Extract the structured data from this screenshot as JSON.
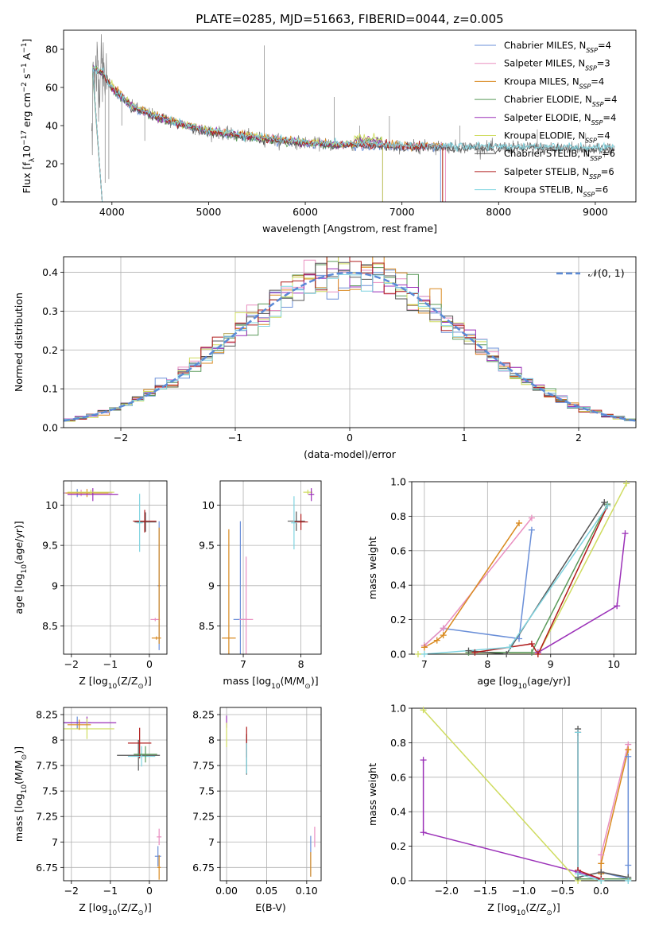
{
  "title": "PLATE=0285, MJD=51663, FIBERID=0044, z=0.005",
  "colors": [
    "#6a8fd8",
    "#e98fc0",
    "#d98a20",
    "#5a9a5a",
    "#9b30b8",
    "#cfdc60",
    "#555555",
    "#b01c1c",
    "#80d4e0"
  ],
  "legend_labels": [
    {
      "base": "Chabrier MILES, N",
      "sub": "SSP",
      "tail": "=4"
    },
    {
      "base": "Salpeter MILES, N",
      "sub": "SSP",
      "tail": "=3"
    },
    {
      "base": "Kroupa MILES, N",
      "sub": "SSP",
      "tail": "=4"
    },
    {
      "base": "Chabrier ELODIE, N",
      "sub": "SSP",
      "tail": "=4"
    },
    {
      "base": "Salpeter ELODIE, N",
      "sub": "SSP",
      "tail": "=4"
    },
    {
      "base": "Kroupa ELODIE, N",
      "sub": "SSP",
      "tail": "=4"
    },
    {
      "base": "Chabrier STELIB, N",
      "sub": "SSP",
      "tail": "=6"
    },
    {
      "base": "Salpeter STELIB, N",
      "sub": "SSP",
      "tail": "=6"
    },
    {
      "base": "Kroupa STELIB, N",
      "sub": "SSP",
      "tail": "=6"
    }
  ],
  "normal_legend": "𝒩(0, 1)",
  "chart_data": [
    {
      "id": "spectrum",
      "type": "line",
      "xlabel": "wavelength [Angstrom, rest frame]",
      "ylabel": {
        "pre": "Flux [f",
        "sub1": "λ",
        "mid": "10",
        "sup1": "−17",
        "mid2": " erg cm",
        "sup2": "−2",
        "mid3": " s",
        "sup3": "−1",
        "mid4": " A",
        "sup4": "−1",
        "end": "]"
      },
      "xlim": [
        3500,
        9420
      ],
      "ylim": [
        0,
        90
      ],
      "xticks": [
        4000,
        5000,
        6000,
        7000,
        8000,
        9000
      ],
      "yticks": [
        0,
        20,
        40,
        60,
        80
      ],
      "model_continuum": [
        [
          3800,
          70
        ],
        [
          3900,
          68
        ],
        [
          4000,
          60
        ],
        [
          4100,
          55
        ],
        [
          4200,
          50
        ],
        [
          4300,
          48
        ],
        [
          4500,
          44
        ],
        [
          4700,
          41
        ],
        [
          5000,
          37
        ],
        [
          5300,
          35
        ],
        [
          5600,
          33
        ],
        [
          6000,
          31
        ],
        [
          6300,
          30
        ],
        [
          6600,
          30
        ],
        [
          7000,
          29
        ],
        [
          7400,
          29
        ],
        [
          8000,
          28.5
        ],
        [
          8500,
          28.5
        ],
        [
          9000,
          28
        ],
        [
          9200,
          28
        ]
      ],
      "spikes": [
        [
          3930,
          10
        ],
        [
          3968,
          12
        ],
        [
          4102,
          40
        ],
        [
          4340,
          32
        ],
        [
          4861,
          35
        ],
        [
          5577,
          82
        ],
        [
          5890,
          30
        ],
        [
          6300,
          55
        ],
        [
          6563,
          40
        ],
        [
          6870,
          45
        ],
        [
          7600,
          40
        ],
        [
          8400,
          38
        ],
        [
          8900,
          36
        ]
      ]
    },
    {
      "id": "residuals",
      "type": "histogram",
      "xlabel": "(data-model)/error",
      "ylabel": "Normed distribution",
      "xlim": [
        -2.5,
        2.5
      ],
      "ylim": [
        0,
        0.44
      ],
      "xticks": [
        -2,
        -1,
        0,
        1,
        2
      ],
      "yticks": [
        0.0,
        0.1,
        0.2,
        0.3,
        0.4
      ],
      "bin_width": 0.1,
      "normal_curve": {
        "mu": 0,
        "sigma": 1
      }
    },
    {
      "id": "age-vs-Z",
      "type": "scatter",
      "xlabel": {
        "pre": "Z [log",
        "sub": "10",
        "mid": "(Z/Z",
        "sub2": "⊙",
        "end": ")]"
      },
      "ylabel": {
        "pre": "age  [log",
        "sub": "10",
        "end": "(age/yr)]"
      },
      "xlim": [
        -2.2,
        0.45
      ],
      "ylim": [
        8.15,
        10.3
      ],
      "xticks": [
        -2,
        -1,
        0
      ],
      "yticks": [
        8.5,
        9.0,
        9.5,
        10.0
      ],
      "points": [
        {
          "s": 0,
          "x": -1.85,
          "y": 10.15,
          "ex": 0.85,
          "ey": 0.05
        },
        {
          "s": 1,
          "x": -1.75,
          "y": 10.15,
          "ex": 0.8,
          "ey": 0.04
        },
        {
          "s": 2,
          "x": -1.6,
          "y": 10.15,
          "ex": 0.55,
          "ey": 0.05
        },
        {
          "s": 4,
          "x": -1.45,
          "y": 10.13,
          "ex": 0.65,
          "ey": 0.08
        },
        {
          "s": 5,
          "x": -1.5,
          "y": 10.16,
          "ex": 0.6,
          "ey": 0.03
        },
        {
          "s": 6,
          "x": -0.1,
          "y": 9.79,
          "ex": 0.28,
          "ey": 0.12
        },
        {
          "s": 7,
          "x": -0.12,
          "y": 9.8,
          "ex": 0.3,
          "ey": 0.14
        },
        {
          "s": 8,
          "x": -0.25,
          "y": 9.78,
          "ex": 0.08,
          "ey": 0.36
        },
        {
          "s": 0,
          "x": 0.25,
          "y": 9.0,
          "ex": 0.04,
          "ey": 0.8
        },
        {
          "s": 1,
          "x": 0.15,
          "y": 8.58,
          "ex": 0.12,
          "ey": 0.02
        },
        {
          "s": 2,
          "x": 0.18,
          "y": 8.35,
          "ex": 0.12,
          "ey": 0.02
        },
        {
          "s": 2,
          "x": 0.25,
          "y": 9.0,
          "ex": 0.02,
          "ey": 0.72
        }
      ]
    },
    {
      "id": "age-vs-mass",
      "type": "scatter",
      "xlabel": {
        "pre": "mass [log",
        "sub": "10",
        "mid": "(M/M",
        "sub2": "⊙",
        "end": ")]"
      },
      "ylabel": "",
      "xlim": [
        6.6,
        8.35
      ],
      "ylim": [
        8.15,
        10.3
      ],
      "xticks": [
        7,
        8
      ],
      "yticks": [
        8.5,
        9.0,
        9.5,
        10.0
      ],
      "points": [
        {
          "s": 0,
          "x": 6.95,
          "y": 8.58,
          "ex": 0.12,
          "ey": 1.22
        },
        {
          "s": 1,
          "x": 7.05,
          "y": 8.58,
          "ex": 0.12,
          "ey": 0.78
        },
        {
          "s": 2,
          "x": 6.75,
          "y": 8.35,
          "ex": 0.12,
          "ey": 1.35
        },
        {
          "s": 6,
          "x": 7.92,
          "y": 9.8,
          "ex": 0.15,
          "ey": 0.12
        },
        {
          "s": 7,
          "x": 8.0,
          "y": 9.79,
          "ex": 0.12,
          "ey": 0.1
        },
        {
          "s": 8,
          "x": 7.88,
          "y": 9.78,
          "ex": 0.05,
          "ey": 0.33
        },
        {
          "s": 5,
          "x": 8.12,
          "y": 10.16,
          "ex": 0.08,
          "ey": 0.03
        },
        {
          "s": 4,
          "x": 8.18,
          "y": 10.13,
          "ex": 0.05,
          "ey": 0.08
        }
      ]
    },
    {
      "id": "weight-vs-age",
      "type": "line",
      "xlabel": {
        "pre": "age  [log",
        "sub": "10",
        "end": "(age/yr)]"
      },
      "ylabel": "mass weight",
      "xlim": [
        6.8,
        10.35
      ],
      "ylim": [
        0,
        1.0
      ],
      "xticks": [
        7,
        8,
        9,
        10
      ],
      "yticks": [
        0.0,
        0.2,
        0.4,
        0.6,
        0.8,
        1.0
      ],
      "series": [
        {
          "s": 0,
          "points": [
            [
              7.0,
              0.05
            ],
            [
              7.3,
              0.15
            ],
            [
              8.5,
              0.09
            ],
            [
              8.7,
              0.72
            ]
          ]
        },
        {
          "s": 1,
          "points": [
            [
              7.0,
              0.05
            ],
            [
              7.3,
              0.15
            ],
            [
              8.7,
              0.79
            ]
          ]
        },
        {
          "s": 2,
          "points": [
            [
              7.0,
              0.04
            ],
            [
              7.2,
              0.08
            ],
            [
              7.3,
              0.11
            ],
            [
              8.5,
              0.76
            ]
          ]
        },
        {
          "s": 3,
          "points": [
            [
              7.7,
              0.01
            ],
            [
              8.7,
              0.01
            ],
            [
              9.9,
              0.87
            ]
          ]
        },
        {
          "s": 4,
          "points": [
            [
              8.8,
              0.01
            ],
            [
              10.05,
              0.28
            ],
            [
              10.18,
              0.7
            ]
          ]
        },
        {
          "s": 5,
          "points": [
            [
              6.9,
              0.0
            ],
            [
              8.8,
              0.0
            ],
            [
              10.2,
              0.99
            ]
          ]
        },
        {
          "s": 6,
          "points": [
            [
              7.7,
              0.02
            ],
            [
              8.3,
              0.0
            ],
            [
              9.85,
              0.88
            ]
          ]
        },
        {
          "s": 7,
          "points": [
            [
              7.8,
              0.01
            ],
            [
              8.7,
              0.06
            ],
            [
              8.8,
              0.0
            ],
            [
              9.9,
              0.86
            ]
          ]
        },
        {
          "s": 8,
          "points": [
            [
              7.0,
              0.0
            ],
            [
              8.35,
              0.04
            ],
            [
              9.9,
              0.86
            ]
          ]
        }
      ]
    },
    {
      "id": "mass-vs-Z",
      "type": "scatter",
      "xlabel": {
        "pre": "Z [log",
        "sub": "10",
        "mid": "(Z/Z",
        "sub2": "⊙",
        "end": ")]"
      },
      "ylabel": {
        "pre": "mass [log",
        "sub": "10",
        "mid": "(M/M",
        "sub2": "⊙",
        "end": ")]"
      },
      "xlim": [
        -2.2,
        0.45
      ],
      "ylim": [
        6.62,
        8.32
      ],
      "xticks": [
        -2,
        -1,
        0
      ],
      "yticks": [
        6.75,
        7.0,
        7.25,
        7.5,
        7.75,
        8.0,
        8.25
      ],
      "points": [
        {
          "s": 0,
          "x": -1.85,
          "y": 8.17,
          "ex": 0.35,
          "ey": 0.06
        },
        {
          "s": 4,
          "x": -1.6,
          "y": 8.17,
          "ex": 0.75,
          "ey": 0.06
        },
        {
          "s": 5,
          "x": -1.6,
          "y": 8.11,
          "ex": 0.7,
          "ey": 0.1
        },
        {
          "s": 2,
          "x": -1.8,
          "y": 8.15,
          "ex": 0.3,
          "ey": 0.05
        },
        {
          "s": 6,
          "x": -0.28,
          "y": 7.85,
          "ex": 0.55,
          "ey": 0.15
        },
        {
          "s": 7,
          "x": -0.25,
          "y": 7.97,
          "ex": 0.3,
          "ey": 0.15
        },
        {
          "s": 8,
          "x": -0.2,
          "y": 7.84,
          "ex": 0.35,
          "ey": 0.1
        },
        {
          "s": 3,
          "x": -0.1,
          "y": 7.86,
          "ex": 0.3,
          "ey": 0.08
        },
        {
          "s": 0,
          "x": 0.22,
          "y": 6.86,
          "ex": 0.08,
          "ey": 0.1
        },
        {
          "s": 1,
          "x": 0.25,
          "y": 7.05,
          "ex": 0.06,
          "ey": 0.08
        },
        {
          "s": 2,
          "x": 0.25,
          "y": 6.75,
          "ex": 0.04,
          "ey": 0.12
        }
      ]
    },
    {
      "id": "mass-vs-EBV",
      "type": "scatter",
      "xlabel": "E(B-V)",
      "ylabel": "",
      "xlim": [
        -0.008,
        0.118
      ],
      "ylim": [
        6.62,
        8.32
      ],
      "xticks": [
        0.0,
        0.05,
        0.1
      ],
      "xticklabels": [
        "0.00",
        "0.05",
        "0.10"
      ],
      "yticks": [
        6.75,
        7.0,
        7.25,
        7.5,
        7.75,
        8.0,
        8.25
      ],
      "points": [
        {
          "s": 4,
          "x": 0.0,
          "y": 8.18,
          "ex": 0.0,
          "ey": 0.06
        },
        {
          "s": 5,
          "x": 0.0,
          "y": 8.05,
          "ex": 0.0,
          "ey": 0.12
        },
        {
          "s": 6,
          "x": 0.025,
          "y": 7.86,
          "ex": 0.0,
          "ey": 0.2
        },
        {
          "s": 7,
          "x": 0.025,
          "y": 7.98,
          "ex": 0.0,
          "ey": 0.15
        },
        {
          "s": 8,
          "x": 0.025,
          "y": 7.82,
          "ex": 0.0,
          "ey": 0.15
        },
        {
          "s": 0,
          "x": 0.105,
          "y": 6.86,
          "ex": 0.0,
          "ey": 0.2
        },
        {
          "s": 1,
          "x": 0.11,
          "y": 7.05,
          "ex": 0.0,
          "ey": 0.1
        },
        {
          "s": 2,
          "x": 0.105,
          "y": 6.78,
          "ex": 0.0,
          "ey": 0.12
        }
      ]
    },
    {
      "id": "weight-vs-Z",
      "type": "line",
      "xlabel": {
        "pre": "Z [log",
        "sub": "10",
        "mid": "(Z/Z",
        "sub2": "⊙",
        "end": ")]"
      },
      "ylabel": "mass weight",
      "xlim": [
        -2.45,
        0.45
      ],
      "ylim": [
        0,
        1.0
      ],
      "xticks": [
        -2.0,
        -1.5,
        -1.0,
        -0.5,
        0.0
      ],
      "xticklabels": [
        "−2.0",
        "−1.5",
        "−1.0",
        "−0.5",
        "0.0"
      ],
      "yticks": [
        0.0,
        0.2,
        0.4,
        0.6,
        0.8,
        1.0
      ],
      "series": [
        {
          "s": 0,
          "points": [
            [
              0.0,
              0.05
            ],
            [
              0.35,
              0.01
            ],
            [
              0.35,
              0.09
            ],
            [
              0.35,
              0.72
            ]
          ]
        },
        {
          "s": 1,
          "points": [
            [
              0.0,
              0.05
            ],
            [
              0.0,
              0.15
            ],
            [
              0.35,
              0.79
            ]
          ]
        },
        {
          "s": 2,
          "points": [
            [
              0.0,
              0.04
            ],
            [
              0.0,
              0.1
            ],
            [
              0.35,
              0.76
            ]
          ]
        },
        {
          "s": 3,
          "points": [
            [
              0.0,
              0.01
            ],
            [
              -0.3,
              0.01
            ],
            [
              0.35,
              0.01
            ]
          ]
        },
        {
          "s": 4,
          "points": [
            [
              -2.3,
              0.7
            ],
            [
              -2.3,
              0.28
            ],
            [
              -0.3,
              0.05
            ],
            [
              0.0,
              0.01
            ]
          ]
        },
        {
          "s": 5,
          "points": [
            [
              -2.3,
              0.99
            ],
            [
              -0.3,
              0.0
            ],
            [
              0.0,
              0.0
            ]
          ]
        },
        {
          "s": 6,
          "points": [
            [
              -0.3,
              0.88
            ],
            [
              -0.3,
              0.02
            ],
            [
              0.0,
              0.05
            ],
            [
              0.35,
              0.02
            ]
          ]
        },
        {
          "s": 7,
          "points": [
            [
              -0.3,
              0.86
            ],
            [
              -0.3,
              0.06
            ],
            [
              0.0,
              0.01
            ]
          ]
        },
        {
          "s": 8,
          "points": [
            [
              -0.3,
              0.86
            ],
            [
              -0.3,
              0.04
            ],
            [
              0.0,
              0.0
            ],
            [
              0.35,
              0.0
            ]
          ]
        }
      ]
    }
  ]
}
